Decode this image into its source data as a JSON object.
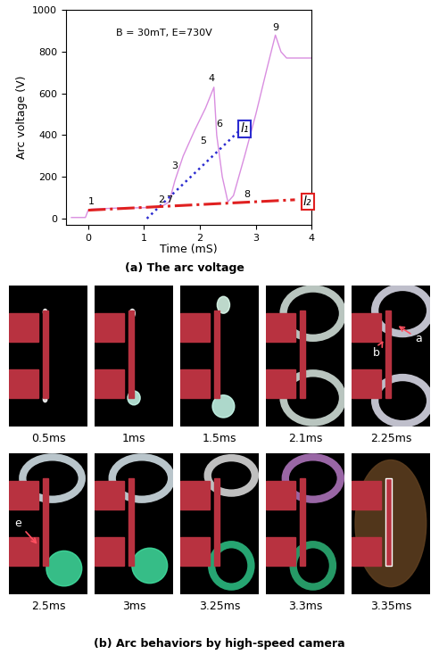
{
  "chart_data": {
    "type": "line",
    "xlabel": "Time (mS)",
    "ylabel": "Arc voltage (V)",
    "xlim": [
      -0.4,
      4
    ],
    "xticks": [
      0,
      1,
      2,
      3,
      4
    ],
    "ylim": [
      -30,
      1000
    ],
    "yticks": [
      0,
      200,
      400,
      600,
      800,
      1000
    ],
    "grid": false,
    "series": [
      {
        "color": "#d98ee0",
        "line_style": "solid",
        "x": [
          -0.3,
          -0.05,
          0,
          0.05,
          0.5,
          1.0,
          1.3,
          1.45,
          1.55,
          1.7,
          1.9,
          2.1,
          2.25,
          2.3,
          2.4,
          2.5,
          2.6,
          2.8,
          3.0,
          3.2,
          3.35,
          3.45,
          3.55,
          4.0
        ],
        "values": [
          5,
          5,
          40,
          45,
          50,
          52,
          55,
          80,
          180,
          300,
          420,
          530,
          630,
          400,
          200,
          80,
          110,
          300,
          500,
          720,
          880,
          800,
          770,
          770
        ]
      },
      {
        "color": "#2b2bd0",
        "line_style": "dotted",
        "x": [
          1.05,
          2.7
        ],
        "values": [
          0,
          420
        ]
      },
      {
        "color": "#e02020",
        "line_style": "dashdot",
        "x": [
          0,
          3.7
        ],
        "values": [
          40,
          90
        ]
      }
    ],
    "annotations": [
      {
        "text": "B = 30mT, E=730V",
        "x": 0.5,
        "y": 870
      },
      {
        "text": "1",
        "x": 0.05,
        "y": 60
      },
      {
        "text": "2",
        "x": 1.3,
        "y": 70
      },
      {
        "text": "7",
        "x": 1.45,
        "y": 70
      },
      {
        "text": "3",
        "x": 1.55,
        "y": 230
      },
      {
        "text": "4",
        "x": 2.2,
        "y": 650
      },
      {
        "text": "5",
        "x": 2.05,
        "y": 350
      },
      {
        "text": "6",
        "x": 2.35,
        "y": 430
      },
      {
        "text": "8",
        "x": 2.85,
        "y": 95
      },
      {
        "text": "9",
        "x": 3.35,
        "y": 895
      },
      {
        "text": "l₁",
        "x": 2.72,
        "y": 430,
        "color": "#2b2bd0"
      },
      {
        "text": "l₂",
        "x": 3.85,
        "y": 80,
        "color": "#e02020"
      }
    ]
  },
  "captions": {
    "a": "(a) The arc voltage",
    "b": "(b) Arc behaviors by high-speed camera"
  },
  "frames": [
    {
      "label": "0.5ms",
      "marks": []
    },
    {
      "label": "1ms",
      "marks": []
    },
    {
      "label": "1.5ms",
      "marks": []
    },
    {
      "label": "2.1ms",
      "marks": []
    },
    {
      "label": "2.25ms",
      "marks": [
        "a",
        "b"
      ]
    },
    {
      "label": "2.5ms",
      "marks": [
        "e"
      ]
    },
    {
      "label": "3ms",
      "marks": []
    },
    {
      "label": "3.25ms",
      "marks": []
    },
    {
      "label": "3.3ms",
      "marks": []
    },
    {
      "label": "3.35ms",
      "marks": []
    }
  ]
}
